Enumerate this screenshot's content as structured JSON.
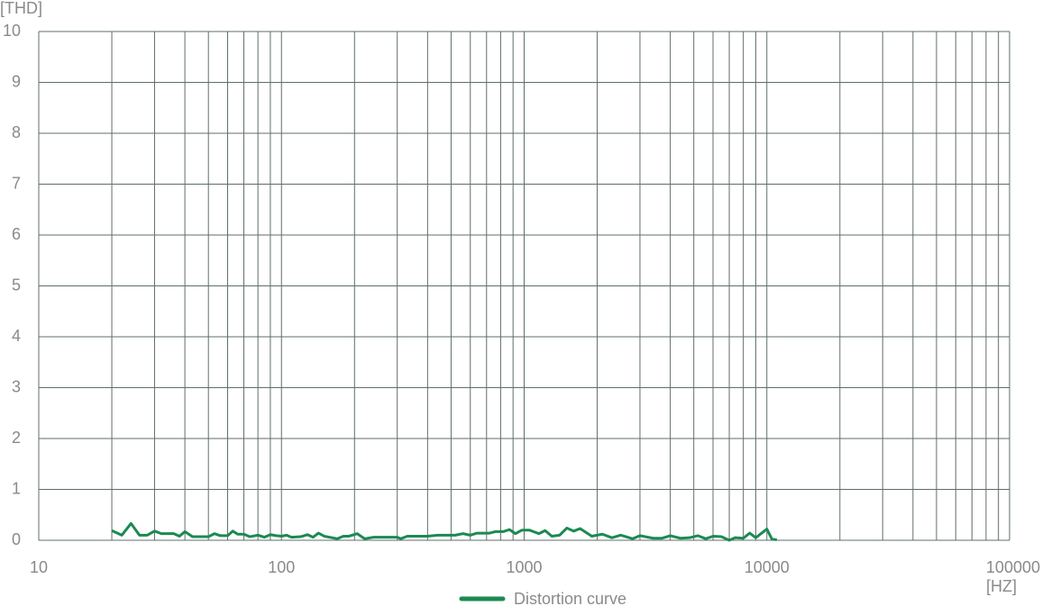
{
  "chart_data": {
    "type": "line",
    "y_label": "[THD]",
    "x_label": "[HZ]",
    "log_x": true,
    "grid": true,
    "xlim": [
      10,
      100000
    ],
    "xticks": [
      10,
      100,
      1000,
      10000,
      100000
    ],
    "xminorticks": [
      20,
      30,
      40,
      50,
      60,
      70,
      80,
      90,
      200,
      300,
      400,
      500,
      600,
      700,
      800,
      900,
      2000,
      3000,
      4000,
      5000,
      6000,
      7000,
      8000,
      9000,
      20000,
      30000,
      40000,
      50000,
      60000,
      70000,
      80000,
      90000
    ],
    "ylim": [
      0,
      10
    ],
    "yticks": [
      0,
      1,
      2,
      3,
      4,
      5,
      6,
      7,
      8,
      9,
      10
    ],
    "legend_position": "bottom",
    "x": [
      20,
      22,
      24,
      26,
      28,
      30,
      32,
      36,
      38,
      40,
      43,
      50,
      53,
      56,
      60,
      63,
      66,
      70,
      74,
      80,
      85,
      90,
      95,
      100,
      105,
      110,
      120,
      128,
      135,
      142,
      150,
      170,
      180,
      190,
      205,
      220,
      240,
      300,
      310,
      330,
      400,
      440,
      520,
      560,
      600,
      640,
      720,
      760,
      820,
      870,
      920,
      980,
      1050,
      1150,
      1220,
      1300,
      1400,
      1500,
      1600,
      1700,
      1900,
      2100,
      2300,
      2500,
      2800,
      3000,
      3400,
      3700,
      4000,
      4400,
      4800,
      5200,
      5600,
      6000,
      6500,
      7000,
      7400,
      8000,
      8500,
      9000,
      10000,
      10500,
      11000
    ],
    "series": [
      {
        "name": "Distortion curve",
        "color": "#1b8a52",
        "values": [
          0.19,
          0.1,
          0.33,
          0.1,
          0.1,
          0.18,
          0.13,
          0.13,
          0.08,
          0.17,
          0.07,
          0.07,
          0.13,
          0.09,
          0.09,
          0.18,
          0.12,
          0.12,
          0.07,
          0.1,
          0.06,
          0.11,
          0.09,
          0.08,
          0.1,
          0.06,
          0.07,
          0.11,
          0.06,
          0.14,
          0.08,
          0.03,
          0.08,
          0.08,
          0.13,
          0.03,
          0.06,
          0.06,
          0.03,
          0.08,
          0.08,
          0.1,
          0.1,
          0.13,
          0.1,
          0.14,
          0.14,
          0.17,
          0.17,
          0.21,
          0.13,
          0.2,
          0.2,
          0.13,
          0.19,
          0.08,
          0.1,
          0.24,
          0.18,
          0.23,
          0.08,
          0.12,
          0.05,
          0.1,
          0.03,
          0.09,
          0.04,
          0.04,
          0.09,
          0.04,
          0.05,
          0.09,
          0.03,
          0.08,
          0.07,
          0.0,
          0.05,
          0.04,
          0.14,
          0.05,
          0.22,
          0.02,
          0.01
        ]
      }
    ]
  }
}
